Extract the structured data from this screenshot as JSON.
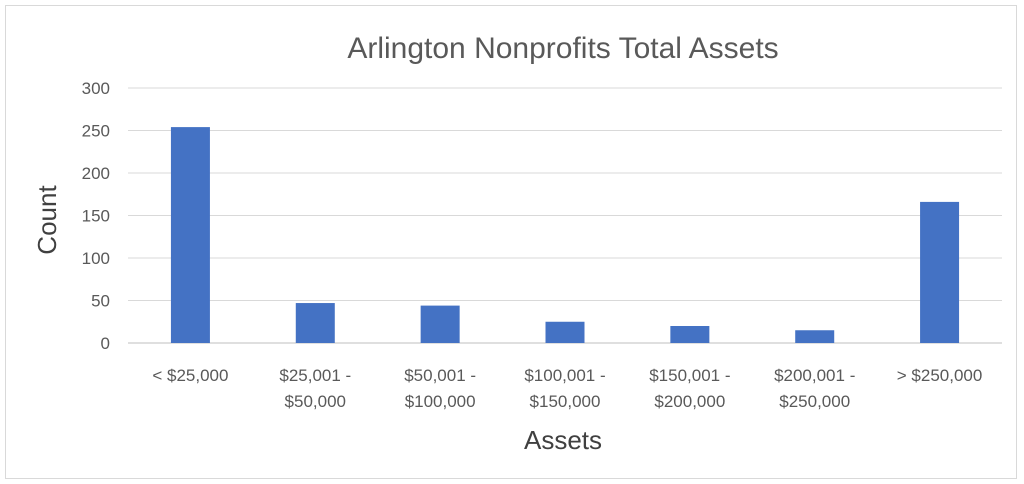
{
  "chart_data": {
    "type": "bar",
    "title": "Arlington Nonprofits Total Assets",
    "xlabel": "Assets",
    "ylabel": "Count",
    "categories": [
      [
        "< $25,000"
      ],
      [
        "$25,001 -",
        "$50,000"
      ],
      [
        "$50,001 -",
        "$100,000"
      ],
      [
        "$100,001 -",
        "$150,000"
      ],
      [
        "$150,001 -",
        "$200,000"
      ],
      [
        "$200,001 -",
        "$250,000"
      ],
      [
        "> $250,000"
      ]
    ],
    "values": [
      254,
      47,
      44,
      25,
      20,
      15,
      166
    ],
    "ylim": [
      0,
      300
    ],
    "yticks": [
      0,
      50,
      100,
      150,
      200,
      250,
      300
    ],
    "grid": true,
    "legend": "none",
    "bar_color": "#4472c4"
  }
}
